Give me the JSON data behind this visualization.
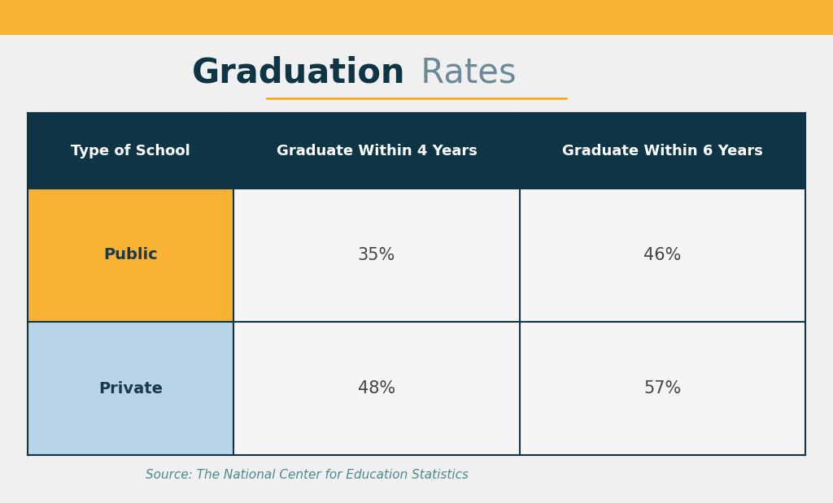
{
  "title_bold": "Graduation",
  "title_regular": " Rates",
  "title_color_bold": "#0d3545",
  "title_color_regular": "#6a8a9a",
  "title_underline_color": "#f5a623",
  "bg_color": "#f0f0f0",
  "top_bar_color": "#f9b233",
  "header_bg": "#0d3545",
  "header_text_color": "#ffffff",
  "col1_header": "Type of School",
  "col2_header": "Graduate Within 4 Years",
  "col3_header": "Graduate Within 6 Years",
  "row1_label": "Public",
  "row1_col1_color": "#f9b233",
  "row1_col1_text_color": "#1a3a4a",
  "row1_val1": "35%",
  "row1_val2": "46%",
  "row2_label": "Private",
  "row2_col1_color": "#b8d4e8",
  "row2_col1_text_color": "#1a3a4a",
  "row2_val1": "48%",
  "row2_val2": "57%",
  "data_cell_bg": "#f5f5f5",
  "data_text_color": "#444444",
  "source_text": "Source: The National Center for Education Statistics",
  "source_color": "#4a8a8a",
  "table_border_color": "#0d3545"
}
